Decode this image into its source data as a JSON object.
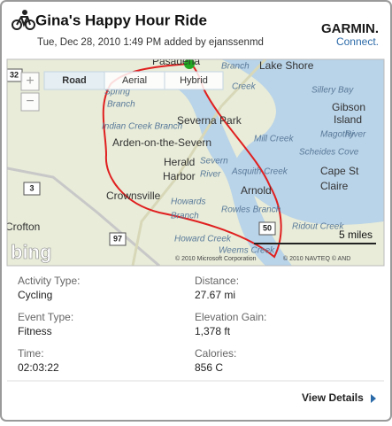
{
  "header": {
    "title": "Gina's Happy Hour Ride",
    "subtitle": "Tue, Dec 28, 2010 1:49 PM added by ejanssenmd",
    "brand": "GARMIN.",
    "brand_sub": "Connect."
  },
  "map": {
    "tabs": [
      "Road",
      "Aerial",
      "Hybrid"
    ],
    "zoom_in": "+",
    "zoom_out": "−",
    "scale": "5 miles",
    "logo": "bing",
    "copyright": [
      "© 2010 Microsoft Corporation",
      "© 2010 NAVTEQ © AND"
    ],
    "places": [
      "Pasadena",
      "Branch",
      "Lake Shore",
      "Creek",
      "Sillery Bay",
      "Spring",
      "Branch",
      "Gibson",
      "Island",
      "Severna Park",
      "Indian Creek Branch",
      "Magothy",
      "River",
      "Arden-on-the-Severn",
      "Mill Creek",
      "Scheides Cove",
      "Herald",
      "Harbor",
      "Severn",
      "River",
      "Asquith Creek",
      "Cape St",
      "Claire",
      "Crownsville",
      "Arnold",
      "Howards",
      "Branch",
      "Rowles Branch",
      "Crofton",
      "Ridout Creek",
      "Howard Creek",
      "Weems Creek"
    ],
    "routes": [
      "32",
      "3",
      "97",
      "50"
    ]
  },
  "stats": [
    {
      "label": "Activity Type:",
      "value": "Cycling"
    },
    {
      "label": "Distance:",
      "value": "27.67 mi"
    },
    {
      "label": "Event Type:",
      "value": "Fitness"
    },
    {
      "label": "Elevation Gain:",
      "value": "1,378 ft"
    },
    {
      "label": "Time:",
      "value": "02:03:22"
    },
    {
      "label": "Calories:",
      "value": "856 C"
    }
  ],
  "footer": {
    "link": "View Details"
  }
}
